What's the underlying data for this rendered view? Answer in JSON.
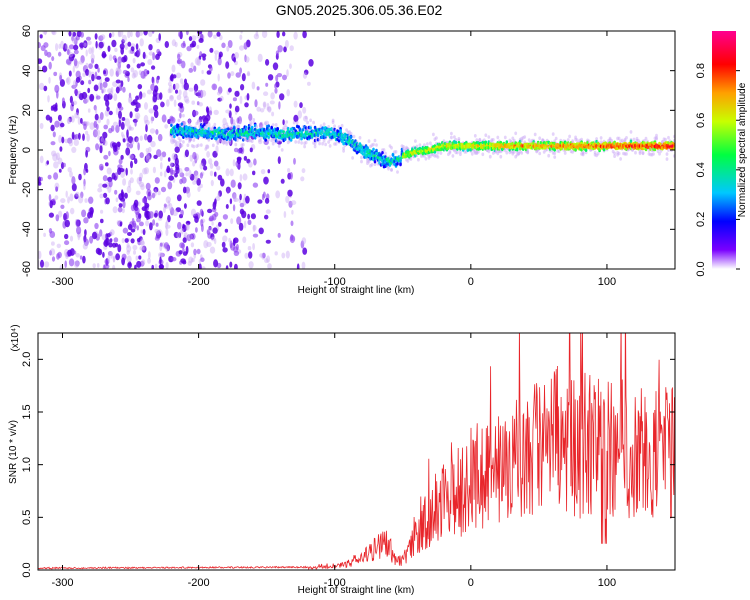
{
  "figure": {
    "title": "GN05.2025.306.05.36.E02"
  },
  "chart_data": [
    {
      "type": "heatmap",
      "xlabel": "Height of straight line (km)",
      "ylabel": "Frequency (Hz)",
      "xlim": [
        -318,
        150
      ],
      "ylim": [
        -60,
        60
      ],
      "xticks": [
        -300,
        -200,
        -100,
        0,
        100
      ],
      "yticks": [
        -60,
        -40,
        -20,
        0,
        20,
        40,
        60
      ],
      "colorbar": {
        "label": "Normalized spectral amplitude",
        "range": [
          0,
          0.96
        ],
        "ticks": [
          0.0,
          0.2,
          0.4,
          0.6,
          0.8
        ],
        "colormap": "rainbow",
        "colors": [
          "#ffffff",
          "#5500ee",
          "#0000ff",
          "#00c8ff",
          "#00ff60",
          "#c8ff00",
          "#ffa000",
          "#ff0000",
          "#ff0090"
        ]
      },
      "ridge": {
        "x": [
          -220,
          -200,
          -180,
          -160,
          -140,
          -120,
          -110,
          -100,
          -90,
          -80,
          -70,
          -60,
          -55,
          -50,
          -40,
          -30,
          -20,
          0,
          20,
          50,
          80,
          100,
          120,
          150
        ],
        "y": [
          10,
          9,
          8,
          9,
          8,
          8,
          9,
          8,
          5,
          0,
          -3,
          -6,
          -5,
          -3,
          -1,
          0,
          2,
          2,
          2,
          2,
          2,
          2,
          2,
          2
        ]
      },
      "noise_region": [
        -318,
        -120
      ]
    },
    {
      "type": "line",
      "xlabel": "Height of straight line (km)",
      "ylabel": "SNR (10 * v/v)",
      "scale_label": "(x10⁴)",
      "xlim": [
        -318,
        150
      ],
      "ylim": [
        0,
        2.25
      ],
      "xticks": [
        -300,
        -200,
        -100,
        0,
        100
      ],
      "yticks": [
        "0.0",
        "0.5",
        "1.0",
        "1.5",
        "2.0"
      ],
      "series": [
        {
          "color": "#e8252a",
          "envelope_x": [
            -318,
            -120,
            -100,
            -90,
            -80,
            -70,
            -65,
            -60,
            -55,
            -50,
            -45,
            -40,
            -35,
            -30,
            -25,
            -20,
            -15,
            -10,
            -5,
            0,
            10,
            20,
            30,
            40,
            50,
            60,
            70,
            80,
            90,
            100,
            110,
            120,
            130,
            140,
            150
          ],
          "envelope_y": [
            0.01,
            0.02,
            0.03,
            0.06,
            0.12,
            0.2,
            0.28,
            0.22,
            0.08,
            0.1,
            0.18,
            0.32,
            0.42,
            0.5,
            0.6,
            0.65,
            0.7,
            0.75,
            0.82,
            0.85,
            0.9,
            0.98,
            1.05,
            1.1,
            1.15,
            1.2,
            1.25,
            1.22,
            1.2,
            1.15,
            1.15,
            1.12,
            1.15,
            1.1,
            1.08
          ]
        }
      ]
    }
  ]
}
